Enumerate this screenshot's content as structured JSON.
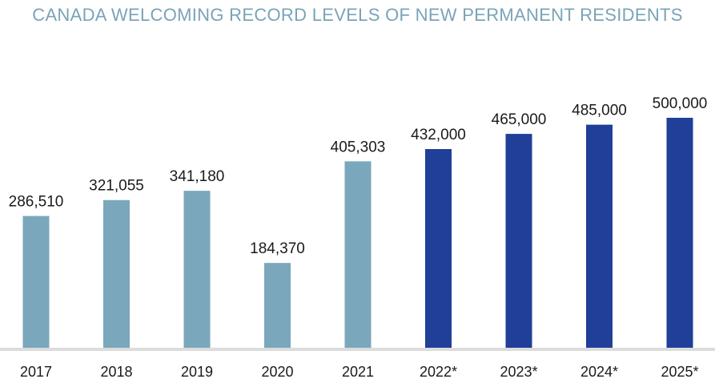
{
  "chart_data": {
    "type": "bar",
    "title": "CANADA WELCOMING RECORD LEVELS OF NEW PERMANENT RESIDENTS",
    "categories": [
      "2017",
      "2018",
      "2019",
      "2020",
      "2021",
      "2022*",
      "2023*",
      "2024*",
      "2025*"
    ],
    "values": [
      286510,
      321055,
      341180,
      184370,
      405303,
      432000,
      465000,
      485000,
      500000
    ],
    "value_labels": [
      "286,510",
      "321,055",
      "341,180",
      "184,370",
      "405,303",
      "432,000",
      "465,000",
      "485,000",
      "500,000"
    ],
    "projected": [
      false,
      false,
      false,
      false,
      false,
      true,
      true,
      true,
      true
    ],
    "xlabel": "",
    "ylabel": "",
    "ylim": [
      0,
      540000
    ],
    "grid": false,
    "colors": {
      "actual": "#7aa7bb",
      "projected": "#1f3f98",
      "baseline": "#dcdcdc",
      "title": "#7aa3b8",
      "text": "#1a1a1a"
    }
  }
}
